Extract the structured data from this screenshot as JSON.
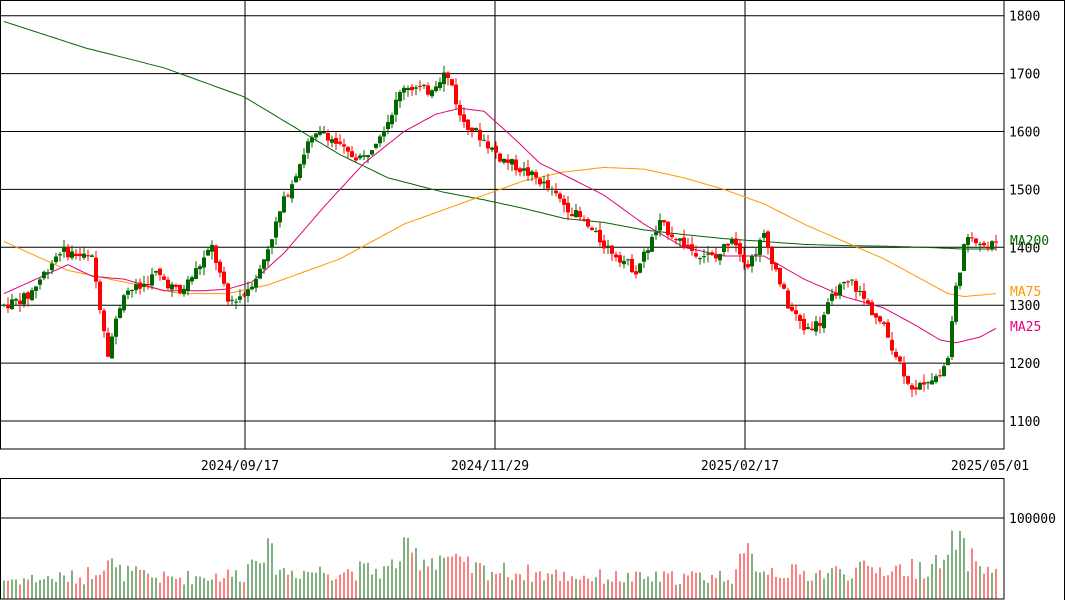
{
  "chart_data": {
    "type": "candlestick",
    "title": "",
    "price_axis": {
      "range": [
        1050,
        1830
      ],
      "ticks": [
        1100,
        1200,
        1300,
        1400,
        1500,
        1600,
        1700,
        1800
      ]
    },
    "volume_axis": {
      "range": [
        0,
        115000
      ],
      "ticks": [
        100000
      ],
      "tick_labels": [
        "100000"
      ]
    },
    "date_labels": [
      "2024/09/17",
      "2024/11/29",
      "2025/02/17",
      "2025/05/01"
    ],
    "grid": true,
    "colors": {
      "up": "#006600",
      "down": "#ff0000",
      "ma25": "#e4007f",
      "ma75": "#ff9900",
      "ma200": "#006600"
    },
    "legend": [
      {
        "name": "MA200",
        "color": "#006600"
      },
      {
        "name": "MA75",
        "color": "#ff9900"
      },
      {
        "name": "MA25",
        "color": "#e4007f"
      }
    ],
    "ohlc_anchors": [
      [
        0,
        1300
      ],
      [
        6,
        1315
      ],
      [
        14,
        1395
      ],
      [
        22,
        1380
      ],
      [
        24,
        1300
      ],
      [
        26,
        1220
      ],
      [
        30,
        1325
      ],
      [
        34,
        1330
      ],
      [
        38,
        1355
      ],
      [
        44,
        1320
      ],
      [
        50,
        1380
      ],
      [
        52,
        1400
      ],
      [
        56,
        1305
      ],
      [
        60,
        1320
      ],
      [
        64,
        1360
      ],
      [
        70,
        1480
      ],
      [
        76,
        1580
      ],
      [
        80,
        1600
      ],
      [
        86,
        1560
      ],
      [
        90,
        1555
      ],
      [
        96,
        1620
      ],
      [
        100,
        1680
      ],
      [
        106,
        1670
      ],
      [
        110,
        1700
      ],
      [
        112,
        1680
      ],
      [
        114,
        1625
      ],
      [
        120,
        1585
      ],
      [
        124,
        1555
      ],
      [
        128,
        1540
      ],
      [
        134,
        1515
      ],
      [
        140,
        1475
      ],
      [
        144,
        1450
      ],
      [
        150,
        1405
      ],
      [
        158,
        1360
      ],
      [
        164,
        1440
      ],
      [
        172,
        1395
      ],
      [
        178,
        1380
      ],
      [
        182,
        1420
      ],
      [
        186,
        1370
      ],
      [
        190,
        1420
      ],
      [
        196,
        1300
      ],
      [
        200,
        1260
      ],
      [
        204,
        1270
      ],
      [
        208,
        1325
      ],
      [
        212,
        1340
      ],
      [
        216,
        1300
      ],
      [
        220,
        1260
      ],
      [
        224,
        1200
      ],
      [
        226,
        1170
      ],
      [
        228,
        1150
      ],
      [
        230,
        1170
      ],
      [
        234,
        1180
      ],
      [
        236,
        1210
      ],
      [
        238,
        1330
      ],
      [
        240,
        1400
      ],
      [
        242,
        1420
      ],
      [
        246,
        1400
      ],
      [
        248,
        1410
      ]
    ],
    "volume_anchors": [
      [
        0,
        28000
      ],
      [
        20,
        32000
      ],
      [
        26,
        60000
      ],
      [
        28,
        40000
      ],
      [
        40,
        30000
      ],
      [
        60,
        36000
      ],
      [
        64,
        80000
      ],
      [
        70,
        40000
      ],
      [
        96,
        42000
      ],
      [
        100,
        68000
      ],
      [
        106,
        58000
      ],
      [
        110,
        64000
      ],
      [
        114,
        48000
      ],
      [
        120,
        42000
      ],
      [
        140,
        34000
      ],
      [
        160,
        30000
      ],
      [
        182,
        34000
      ],
      [
        186,
        64000
      ],
      [
        190,
        44000
      ],
      [
        200,
        36000
      ],
      [
        220,
        44000
      ],
      [
        228,
        44000
      ],
      [
        236,
        52000
      ],
      [
        238,
        98000
      ],
      [
        240,
        66000
      ],
      [
        242,
        58000
      ],
      [
        248,
        36000
      ]
    ],
    "ma25_anchors": [
      [
        0,
        1320
      ],
      [
        16,
        1370
      ],
      [
        22,
        1350
      ],
      [
        30,
        1345
      ],
      [
        40,
        1325
      ],
      [
        50,
        1325
      ],
      [
        56,
        1328
      ],
      [
        62,
        1340
      ],
      [
        70,
        1390
      ],
      [
        80,
        1470
      ],
      [
        90,
        1545
      ],
      [
        100,
        1600
      ],
      [
        108,
        1630
      ],
      [
        114,
        1640
      ],
      [
        120,
        1635
      ],
      [
        128,
        1585
      ],
      [
        134,
        1545
      ],
      [
        140,
        1525
      ],
      [
        150,
        1490
      ],
      [
        160,
        1440
      ],
      [
        170,
        1400
      ],
      [
        180,
        1385
      ],
      [
        190,
        1385
      ],
      [
        200,
        1345
      ],
      [
        210,
        1315
      ],
      [
        220,
        1295
      ],
      [
        228,
        1265
      ],
      [
        234,
        1240
      ],
      [
        238,
        1235
      ],
      [
        244,
        1245
      ],
      [
        248,
        1260
      ]
    ],
    "ma75_anchors": [
      [
        0,
        1410
      ],
      [
        16,
        1360
      ],
      [
        30,
        1340
      ],
      [
        44,
        1320
      ],
      [
        56,
        1320
      ],
      [
        66,
        1335
      ],
      [
        84,
        1380
      ],
      [
        100,
        1440
      ],
      [
        120,
        1490
      ],
      [
        130,
        1515
      ],
      [
        140,
        1530
      ],
      [
        150,
        1538
      ],
      [
        160,
        1535
      ],
      [
        170,
        1520
      ],
      [
        180,
        1500
      ],
      [
        190,
        1475
      ],
      [
        200,
        1440
      ],
      [
        210,
        1410
      ],
      [
        220,
        1380
      ],
      [
        228,
        1350
      ],
      [
        236,
        1320
      ],
      [
        240,
        1315
      ],
      [
        248,
        1320
      ]
    ],
    "ma200_anchors": [
      [
        0,
        1790
      ],
      [
        20,
        1745
      ],
      [
        40,
        1710
      ],
      [
        60,
        1660
      ],
      [
        72,
        1610
      ],
      [
        84,
        1560
      ],
      [
        96,
        1520
      ],
      [
        110,
        1495
      ],
      [
        120,
        1482
      ],
      [
        130,
        1467
      ],
      [
        140,
        1450
      ],
      [
        150,
        1443
      ],
      [
        160,
        1430
      ],
      [
        170,
        1422
      ],
      [
        180,
        1415
      ],
      [
        190,
        1410
      ],
      [
        200,
        1405
      ],
      [
        210,
        1403
      ],
      [
        220,
        1402
      ],
      [
        230,
        1400
      ],
      [
        240,
        1397
      ],
      [
        248,
        1397
      ]
    ]
  }
}
